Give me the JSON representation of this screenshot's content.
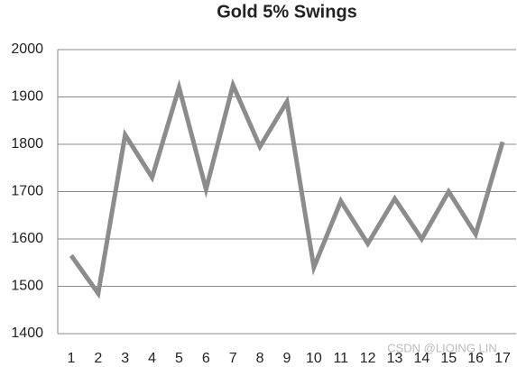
{
  "chart_data": {
    "type": "line",
    "title": "Gold 5% Swings",
    "categories": [
      "1",
      "2",
      "3",
      "4",
      "5",
      "6",
      "7",
      "8",
      "9",
      "10",
      "11",
      "12",
      "13",
      "14",
      "15",
      "16",
      "17"
    ],
    "series": [
      {
        "name": "Gold",
        "color": "#8c8c8c",
        "values": [
          1565,
          1485,
          1820,
          1730,
          1920,
          1705,
          1925,
          1795,
          1890,
          1540,
          1680,
          1590,
          1685,
          1600,
          1700,
          1610,
          1805
        ]
      }
    ],
    "ylim": [
      1400,
      2000
    ],
    "yticks": [
      1400,
      1500,
      1600,
      1700,
      1800,
      1900,
      2000
    ],
    "grid": true,
    "watermark": "CSDN @LIQING LIN"
  }
}
